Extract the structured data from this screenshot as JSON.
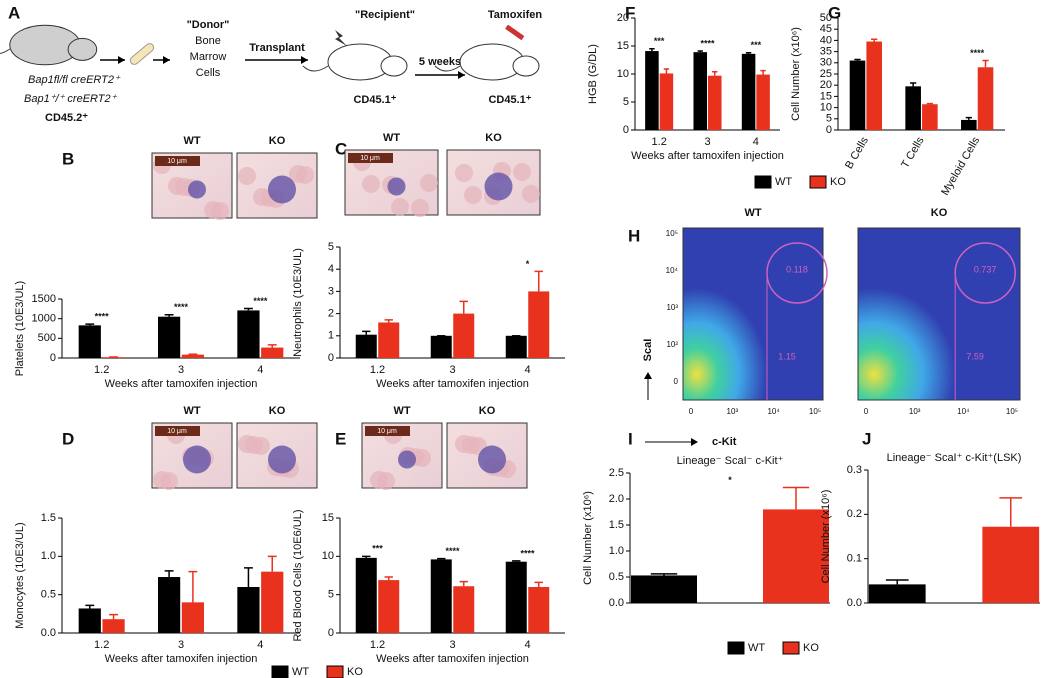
{
  "panel_labels": [
    "A",
    "B",
    "C",
    "D",
    "E",
    "F",
    "G",
    "H",
    "I",
    "J"
  ],
  "diagram": {
    "donor_genotypes": [
      "Bap1fl/fl creERT2⁺",
      "Bap1⁺/⁺ creERT2⁺"
    ],
    "donor_marker": "CD45.2⁺",
    "cells_label": [
      "\"Donor\"",
      "Bone",
      "Marrow",
      "Cells"
    ],
    "transplant": "Transplant",
    "recipient": "\"Recipient\"",
    "recipient_marker": "CD45.1⁺",
    "interval": "5 weeks",
    "treatment": "Tamoxifen",
    "treated_marker": "CD45.1⁺"
  },
  "micrographs": [
    {
      "labels": [
        "WT",
        "KO"
      ],
      "scale": "10 μm"
    },
    {
      "labels": [
        "WT",
        "KO"
      ],
      "scale": "10 μm"
    },
    {
      "labels": [
        "WT",
        "KO"
      ],
      "scale": "10 μm"
    },
    {
      "labels": [
        "WT",
        "KO"
      ],
      "scale": "10 μm"
    }
  ],
  "flow": {
    "y_label": "ScaI",
    "x_label": "c-Kit",
    "yticks": [
      "10⁵",
      "10⁴",
      "10³",
      "10²",
      "0"
    ],
    "xticks": [
      "0",
      "10³",
      "10⁴",
      "10⁵"
    ],
    "plots": [
      {
        "title": "WT",
        "gates": [
          0.118,
          1.15
        ]
      },
      {
        "title": "KO",
        "gates": [
          0.737,
          7.59
        ]
      }
    ]
  },
  "chart_data": [
    {
      "type": "bar",
      "ylabel": "Platelets (10E3/UL)",
      "xlabel": "Weeks after tamoxifen injection",
      "categories": [
        "1.2",
        "3",
        "4"
      ],
      "series": [
        {
          "name": "WT",
          "color": "#000000",
          "values": [
            830,
            1050,
            1210
          ],
          "errors": [
            30,
            50,
            50
          ]
        },
        {
          "name": "KO",
          "color": "#e8321e",
          "values": [
            20,
            85,
            265
          ],
          "errors": [
            5,
            10,
            70
          ]
        }
      ],
      "ylim": [
        0,
        1500
      ],
      "yticks": [
        0,
        500,
        1000,
        1500
      ],
      "annotations": [
        "****",
        "****",
        "****"
      ]
    },
    {
      "type": "bar",
      "ylabel": "Neutrophils (10E3/UL)",
      "xlabel": "Weeks after tamoxifen injection",
      "categories": [
        "1.2",
        "3",
        "4"
      ],
      "series": [
        {
          "name": "WT",
          "color": "#000000",
          "values": [
            1.05,
            1.0,
            1.0
          ],
          "errors": [
            0.15,
            0,
            0
          ]
        },
        {
          "name": "KO",
          "color": "#e8321e",
          "values": [
            1.6,
            2.0,
            3.0
          ],
          "errors": [
            0.12,
            0.55,
            0.9
          ]
        }
      ],
      "ylim": [
        0,
        5
      ],
      "yticks": [
        0,
        1,
        2,
        3,
        4,
        5
      ],
      "annotations": [
        null,
        null,
        "*"
      ]
    },
    {
      "type": "bar",
      "ylabel": "Monocytes (10E3/UL)",
      "xlabel": "Weeks after tamoxifen injection",
      "categories": [
        "1.2",
        "3",
        "4"
      ],
      "series": [
        {
          "name": "WT",
          "color": "#000000",
          "values": [
            0.32,
            0.73,
            0.6
          ],
          "errors": [
            0.04,
            0.08,
            0.25
          ]
        },
        {
          "name": "KO",
          "color": "#e8321e",
          "values": [
            0.18,
            0.4,
            0.8
          ],
          "errors": [
            0.06,
            0.4,
            0.2
          ]
        }
      ],
      "ylim": [
        0,
        1.5
      ],
      "yticks": [
        {
          "value": 0,
          "label": "0.0"
        },
        0.5,
        {
          "value": 1,
          "label": "1.0"
        },
        1.5
      ]
    },
    {
      "type": "bar",
      "ylabel": "Red Blood Cells (10E6/UL)",
      "xlabel": "Weeks after tamoxifen injection",
      "categories": [
        "1.2",
        "3",
        "4"
      ],
      "series": [
        {
          "name": "WT",
          "color": "#000000",
          "values": [
            9.8,
            9.6,
            9.3
          ],
          "errors": [
            0.2,
            0.1,
            0.1
          ]
        },
        {
          "name": "KO",
          "color": "#e8321e",
          "values": [
            6.9,
            6.1,
            6.0
          ],
          "errors": [
            0.4,
            0.6,
            0.6
          ]
        }
      ],
      "ylim": [
        0,
        15
      ],
      "yticks": [
        0,
        5,
        10,
        15
      ],
      "annotations": [
        "***",
        "****",
        "****"
      ],
      "legend": "bottom"
    },
    {
      "type": "bar",
      "ylabel": "HGB (G/DL)",
      "xlabel": "Weeks after tamoxifen injection",
      "categories": [
        "1.2",
        "3",
        "4"
      ],
      "series": [
        {
          "name": "WT",
          "color": "#000000",
          "values": [
            14.1,
            13.9,
            13.6
          ],
          "errors": [
            0.4,
            0.2,
            0.2
          ]
        },
        {
          "name": "KO",
          "color": "#e8321e",
          "values": [
            10.1,
            9.7,
            9.9
          ],
          "errors": [
            0.8,
            0.7,
            0.7
          ]
        }
      ],
      "ylim": [
        0,
        20
      ],
      "yticks": [
        0,
        5,
        10,
        15,
        20
      ],
      "annotations": [
        "***",
        "****",
        "***"
      ]
    },
    {
      "type": "bar",
      "ylabel": "Cell Number (x10⁶)",
      "categories": [
        "B Cells",
        "T Cells",
        "Myeloid Cells"
      ],
      "series": [
        {
          "name": "WT",
          "color": "#000000",
          "values": [
            31,
            19.5,
            4.5
          ],
          "errors": [
            0.5,
            1.5,
            1
          ]
        },
        {
          "name": "KO",
          "color": "#e8321e",
          "values": [
            39.5,
            11.5,
            28
          ],
          "errors": [
            1,
            0.3,
            3
          ]
        }
      ],
      "ylim": [
        0,
        50
      ],
      "yticks": [
        0,
        5,
        10,
        15,
        20,
        25,
        30,
        35,
        40,
        45,
        50
      ],
      "annotations": [
        null,
        null,
        "****"
      ],
      "legend": "bottom"
    },
    {
      "type": "bar",
      "title": "Lineage⁻ ScaI⁻ c-Kit⁺",
      "ylabel": "Cell Number (x10⁶)",
      "categories": [
        null
      ],
      "series": [
        {
          "name": "WT",
          "color": "#000000",
          "values": [
            0.53
          ],
          "errors": [
            0.03
          ]
        },
        {
          "name": "KO",
          "color": "#e8321e",
          "values": [
            1.8
          ],
          "errors": [
            0.42
          ]
        }
      ],
      "ylim": [
        0,
        2.5
      ],
      "yticks": [
        {
          "value": 0,
          "label": "0.0"
        },
        0.5,
        {
          "value": 1,
          "label": "1.0"
        },
        1.5,
        {
          "value": 2,
          "label": "2.0"
        },
        2.5
      ],
      "annotations": [
        "*"
      ]
    },
    {
      "type": "bar",
      "title": "Lineage⁻ ScaI⁺ c-Kit⁺(LSK)",
      "ylabel": "Cell Number (x10⁶)",
      "categories": [
        null
      ],
      "series": [
        {
          "name": "WT",
          "color": "#000000",
          "values": [
            0.042
          ],
          "errors": [
            0.01
          ]
        },
        {
          "name": "KO",
          "color": "#e8321e",
          "values": [
            0.172
          ],
          "errors": [
            0.065
          ]
        }
      ],
      "ylim": [
        0,
        0.3
      ],
      "yticks": [
        {
          "value": 0,
          "label": "0.0"
        },
        0.1,
        0.2,
        0.3
      ],
      "legend": "bottom"
    }
  ]
}
